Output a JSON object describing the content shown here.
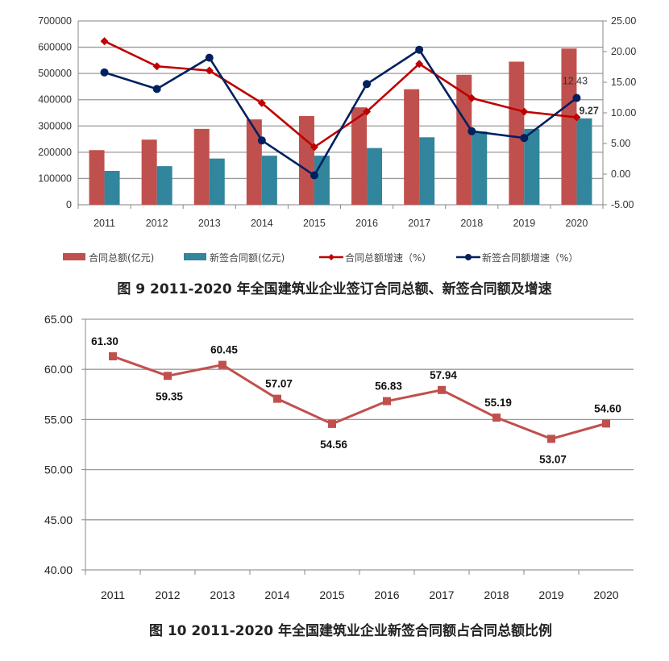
{
  "chart_data": [
    {
      "type": "bar+line",
      "title": "图 9  2011-2020 年全国建筑业企业签订合同总额、新签合同额及增速",
      "categories": [
        "2011",
        "2012",
        "2013",
        "2014",
        "2015",
        "2016",
        "2017",
        "2018",
        "2019",
        "2020"
      ],
      "y_left": {
        "ylim": [
          0,
          700000
        ],
        "ticks": [
          "0",
          "100000",
          "200000",
          "300000",
          "400000",
          "500000",
          "600000",
          "700000"
        ]
      },
      "y_right": {
        "ylim": [
          -5,
          25
        ],
        "ticks": [
          "-5.00",
          "0.00",
          "5.00",
          "10.00",
          "15.00",
          "20.00",
          "25.00"
        ]
      },
      "grid": true,
      "legend_position": "bottom",
      "series": [
        {
          "name": "合同总额(亿元)",
          "kind": "bar",
          "axis": "left",
          "color": "#c0504d",
          "values": [
            208000,
            248000,
            289000,
            325000,
            338000,
            371000,
            440000,
            495000,
            545000,
            595000
          ]
        },
        {
          "name": "新签合同额(亿元)",
          "kind": "bar",
          "axis": "left",
          "color": "#31859c",
          "values": [
            129000,
            147000,
            176000,
            187000,
            187000,
            216000,
            257000,
            279000,
            289000,
            329000
          ]
        },
        {
          "name": "合同总额增速（%）",
          "kind": "line",
          "axis": "right",
          "color": "#c00000",
          "values": [
            21.7,
            17.6,
            16.9,
            11.6,
            4.4,
            10.2,
            18.0,
            12.4,
            10.2,
            9.27
          ]
        },
        {
          "name": "新签合同额增速（%）",
          "kind": "line",
          "axis": "right",
          "color": "#002060",
          "values": [
            16.6,
            13.9,
            19.0,
            5.5,
            -0.2,
            14.7,
            20.3,
            7.0,
            5.9,
            12.43
          ]
        }
      ],
      "data_labels": [
        {
          "series": 3,
          "index": 9,
          "text": "12.43"
        },
        {
          "series": 2,
          "index": 9,
          "text": "9.27"
        }
      ]
    },
    {
      "type": "line",
      "title": "图 10  2011-2020 年全国建筑业企业新签合同额占合同总额比例",
      "categories": [
        "2011",
        "2012",
        "2013",
        "2014",
        "2015",
        "2016",
        "2017",
        "2018",
        "2019",
        "2020"
      ],
      "ylim": [
        40,
        65
      ],
      "yticks": [
        "40.00",
        "45.00",
        "50.00",
        "55.00",
        "60.00",
        "65.00"
      ],
      "grid": true,
      "color": "#c0504d",
      "values": [
        61.3,
        59.35,
        60.45,
        57.07,
        54.56,
        56.83,
        57.94,
        55.19,
        53.07,
        54.6
      ],
      "labels": [
        "61.30",
        "59.35",
        "60.45",
        "57.07",
        "54.56",
        "56.83",
        "57.94",
        "55.19",
        "53.07",
        "54.60"
      ]
    }
  ]
}
